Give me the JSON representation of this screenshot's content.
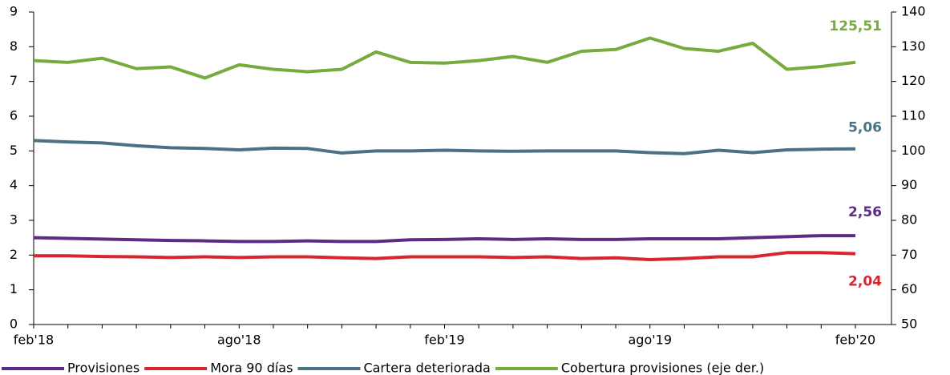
{
  "chart_data": {
    "type": "line",
    "categories": [
      "feb'18",
      null,
      null,
      null,
      null,
      null,
      "ago'18",
      null,
      null,
      null,
      null,
      null,
      "feb'19",
      null,
      null,
      null,
      null,
      null,
      "ago'19",
      null,
      null,
      null,
      null,
      null,
      "feb'20"
    ],
    "ylim": [
      0,
      9
    ],
    "yticks": [
      0,
      1,
      2,
      3,
      4,
      5,
      6,
      7,
      8,
      9
    ],
    "y2lim": [
      50,
      140
    ],
    "y2ticks": [
      50,
      60,
      70,
      80,
      90,
      100,
      110,
      120,
      130,
      140
    ],
    "series": [
      {
        "name": "Provisiones",
        "color": "#5b2c83",
        "values": [
          2.5,
          2.48,
          2.46,
          2.44,
          2.42,
          2.41,
          2.39,
          2.39,
          2.41,
          2.39,
          2.39,
          2.44,
          2.45,
          2.47,
          2.45,
          2.47,
          2.45,
          2.45,
          2.47,
          2.47,
          2.47,
          2.5,
          2.53,
          2.56,
          2.56
        ],
        "value_labels": [
          null,
          null,
          null,
          null,
          null,
          null,
          null,
          null,
          null,
          null,
          null,
          null,
          null,
          null,
          null,
          null,
          null,
          null,
          null,
          null,
          null,
          null,
          null,
          null,
          "2,56"
        ]
      },
      {
        "name": "Mora 90 días",
        "color": "#d7262f",
        "values": [
          1.98,
          1.98,
          1.96,
          1.95,
          1.93,
          1.95,
          1.93,
          1.95,
          1.95,
          1.92,
          1.9,
          1.95,
          1.95,
          1.95,
          1.93,
          1.95,
          1.9,
          1.92,
          1.87,
          1.9,
          1.95,
          1.95,
          2.07,
          2.07,
          2.04
        ],
        "value_labels": [
          null,
          null,
          null,
          null,
          null,
          null,
          null,
          null,
          null,
          null,
          null,
          null,
          null,
          null,
          null,
          null,
          null,
          null,
          null,
          null,
          null,
          null,
          null,
          null,
          "2,04"
        ]
      },
      {
        "name": "Cartera deteriorada",
        "color": "#4a7185",
        "values": [
          5.3,
          5.26,
          5.23,
          5.15,
          5.09,
          5.07,
          5.03,
          5.08,
          5.07,
          4.94,
          5.0,
          5.0,
          5.02,
          5.0,
          4.99,
          5.0,
          5.0,
          5.0,
          4.95,
          4.92,
          5.02,
          4.95,
          5.03,
          5.05,
          5.06
        ],
        "value_labels": [
          null,
          null,
          null,
          null,
          null,
          null,
          null,
          null,
          null,
          null,
          null,
          null,
          null,
          null,
          null,
          null,
          null,
          null,
          null,
          null,
          null,
          null,
          null,
          null,
          "5,06"
        ]
      },
      {
        "name": "Cobertura provisiones (eje der.)",
        "color": "#77ab3e",
        "axis": "y2",
        "values": [
          126.0,
          125.5,
          126.7,
          123.7,
          124.2,
          121.0,
          124.8,
          123.5,
          122.8,
          123.5,
          128.5,
          125.5,
          125.3,
          126.0,
          127.2,
          125.5,
          128.7,
          129.2,
          132.5,
          129.5,
          128.7,
          131.0,
          123.5,
          124.3,
          125.51
        ],
        "value_labels": [
          null,
          null,
          null,
          null,
          null,
          null,
          null,
          null,
          null,
          null,
          null,
          null,
          null,
          null,
          null,
          null,
          null,
          null,
          null,
          null,
          null,
          null,
          null,
          null,
          "125,51"
        ]
      }
    ]
  }
}
